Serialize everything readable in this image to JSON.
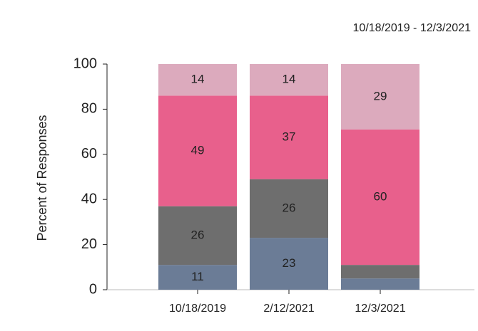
{
  "chart_data": {
    "type": "stacked_bar",
    "subtitle": "10/18/2019 - 12/3/2021",
    "y_label": "Percent of Responses",
    "categories": [
      "10/18/2019",
      "2/12/2021",
      "12/3/2021"
    ],
    "series": [
      {
        "color": "#6b7c96",
        "values": [
          11,
          23,
          5
        ]
      },
      {
        "color": "#6e6e6e",
        "values": [
          26,
          26,
          6
        ]
      },
      {
        "color": "#e8608c",
        "values": [
          49,
          37,
          60
        ]
      },
      {
        "color": "#dcaabd",
        "values": [
          14,
          14,
          29
        ]
      }
    ],
    "ylim": [
      0,
      100
    ],
    "yticks": [
      0,
      20,
      40,
      60,
      80,
      100
    ]
  }
}
